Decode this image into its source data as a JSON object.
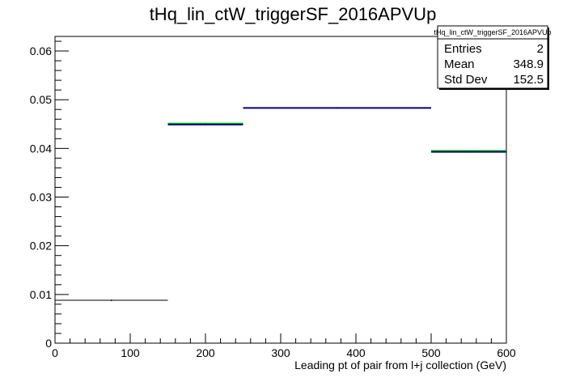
{
  "chart_data": {
    "type": "histogram",
    "title": "tHq_lin_ctW_triggerSF_2016APVUp",
    "xlabel": "Leading pt of pair from l+j collection (GeV)",
    "ylabel": "",
    "xlim": [
      0,
      600
    ],
    "ylim": [
      0,
      0.063
    ],
    "x_ticks": [
      0,
      100,
      200,
      300,
      400,
      500,
      600
    ],
    "x_tick_labels": [
      "0",
      "100",
      "200",
      "300",
      "400",
      "500",
      "600"
    ],
    "y_ticks": [
      0,
      0.01,
      0.02,
      0.03,
      0.04,
      0.05,
      0.06
    ],
    "y_tick_labels": [
      "0",
      "0.01",
      "0.02",
      "0.03",
      "0.04",
      "0.05",
      "0.06"
    ],
    "grid": false,
    "series": [
      {
        "color": "#000000",
        "bins": [
          {
            "x0": 0,
            "x1": 150,
            "y": 0.0088
          }
        ]
      },
      {
        "color": "#00cc00",
        "bins": [
          {
            "x0": 150,
            "x1": 250,
            "y": 0.0451
          },
          {
            "x0": 500,
            "x1": 600,
            "y": 0.0395
          }
        ]
      },
      {
        "color": "#000080",
        "bins": [
          {
            "x0": 150,
            "x1": 250,
            "y": 0.0449
          },
          {
            "x0": 250,
            "x1": 500,
            "y": 0.0483
          },
          {
            "x0": 500,
            "x1": 600,
            "y": 0.0393
          }
        ]
      }
    ],
    "stats_box": {
      "name": "tHq_lin_ctW_triggerSF_2016APVUp",
      "rows": [
        {
          "label": "Entries",
          "value": "2"
        },
        {
          "label": "Mean",
          "value": "348.9"
        },
        {
          "label": "Std Dev",
          "value": "152.5"
        }
      ]
    }
  }
}
